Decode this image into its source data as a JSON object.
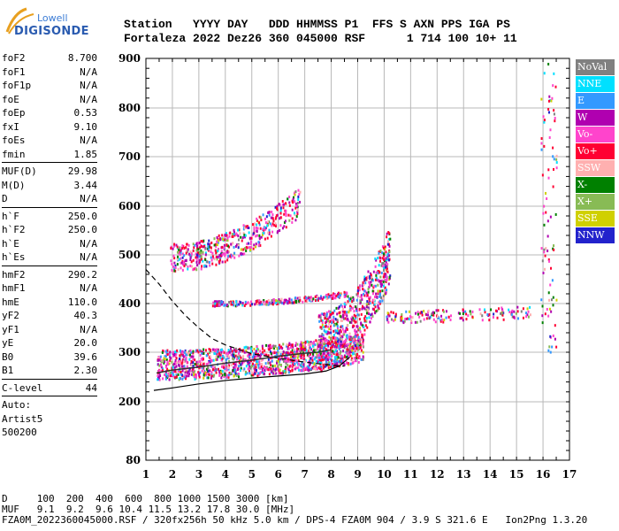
{
  "logo": {
    "line1": "Lowell",
    "line2": "DIGISONDE"
  },
  "header": {
    "line1": "Station   YYYY DAY   DDD HHMMSS P1  FFS S AXN PPS IGA PS",
    "line2": "Fortaleza 2022 Dez26 360 045000 RSF      1 714 100 10+ 11"
  },
  "params": [
    {
      "k": "foF2",
      "v": "8.700"
    },
    {
      "k": "foF1",
      "v": "N/A"
    },
    {
      "k": "foF1p",
      "v": "N/A"
    },
    {
      "k": "foE",
      "v": "N/A"
    },
    {
      "k": "foEp",
      "v": "0.53"
    },
    {
      "k": "fxI",
      "v": "9.10"
    },
    {
      "k": "foEs",
      "v": "N/A"
    },
    {
      "k": "fmin",
      "v": "1.85"
    },
    {
      "sep": true
    },
    {
      "k": "MUF(D)",
      "v": "29.98"
    },
    {
      "k": "M(D)",
      "v": "3.44"
    },
    {
      "k": "D",
      "v": "N/A"
    },
    {
      "sep": true
    },
    {
      "k": "h`F",
      "v": "250.0"
    },
    {
      "k": "h`F2",
      "v": "250.0"
    },
    {
      "k": "h`E",
      "v": "N/A"
    },
    {
      "k": "h`Es",
      "v": "N/A"
    },
    {
      "sep": true
    },
    {
      "k": "hmF2",
      "v": "290.2"
    },
    {
      "k": "hmF1",
      "v": "N/A"
    },
    {
      "k": "hmE",
      "v": "110.0"
    },
    {
      "k": "yF2",
      "v": "40.3"
    },
    {
      "k": "yF1",
      "v": "N/A"
    },
    {
      "k": "yE",
      "v": "20.0"
    },
    {
      "k": "B0",
      "v": "39.6"
    },
    {
      "k": "B1",
      "v": "2.30"
    },
    {
      "sep": true
    },
    {
      "k": "C-level",
      "v": "44"
    },
    {
      "sep": true
    },
    {
      "t": "Auto:"
    },
    {
      "t": "Artist5"
    },
    {
      "t": "500200"
    }
  ],
  "legend": [
    {
      "label": "NoVal",
      "bg": "#808080",
      "fg": "#ffffff"
    },
    {
      "label": "NNE",
      "bg": "#00e0ff",
      "fg": "#ffffff"
    },
    {
      "label": "E",
      "bg": "#3399ff",
      "fg": "#ffffff"
    },
    {
      "label": "W",
      "bg": "#b000b0",
      "fg": "#ffffff"
    },
    {
      "label": "Vo-",
      "bg": "#ff44cc",
      "fg": "#ffffff"
    },
    {
      "label": "Vo+",
      "bg": "#ff0033",
      "fg": "#ffffff"
    },
    {
      "label": "SSW",
      "bg": "#ffb0b0",
      "fg": "#ffffff"
    },
    {
      "label": "X-",
      "bg": "#008000",
      "fg": "#ffffff"
    },
    {
      "label": "X+",
      "bg": "#88bb55",
      "fg": "#ffffff"
    },
    {
      "label": "SSE",
      "bg": "#d0d000",
      "fg": "#ffffff"
    },
    {
      "label": "NNW",
      "bg": "#2222cc",
      "fg": "#ffffff"
    }
  ],
  "footer": {
    "line1": "D     100  200  400  600  800 1000 1500 3000 [km]",
    "line2": "MUF   9.1  9.2  9.6 10.4 11.5 13.2 17.8 30.0 [MHz]",
    "line3": "FZA0M_2022360045000.RSF / 320fx256h 50 kHz 5.0 km / DPS-4 FZA0M 904 / 3.9 S 321.6 E   Ion2Png 1.3.20"
  },
  "chart_data": {
    "type": "scatter",
    "xlim": [
      1,
      17
    ],
    "ylim": [
      80,
      900
    ],
    "xticks": [
      1,
      2,
      3,
      4,
      5,
      6,
      7,
      8,
      9,
      10,
      11,
      12,
      13,
      14,
      15,
      16,
      17
    ],
    "yticks": [
      80,
      200,
      300,
      400,
      500,
      600,
      700,
      800,
      900
    ],
    "grid": true,
    "clusters": [
      {
        "name": "F trace",
        "x_range": [
          1.4,
          9.2
        ],
        "y_base": [
          265,
          300
        ],
        "y_spread": 60,
        "n": 1400
      },
      {
        "name": "spread F",
        "x_range": [
          7.5,
          10.2
        ],
        "y_base": [
          300,
          480
        ],
        "y_spread": 120,
        "n": 700
      },
      {
        "name": "second hop",
        "x_range": [
          1.9,
          6.8
        ],
        "y_base": [
          485,
          600
        ],
        "y_spread": 60,
        "n": 500
      },
      {
        "name": "band 400",
        "x_range": [
          3.5,
          8.6
        ],
        "y_base": [
          400,
          420
        ],
        "y_spread": 10,
        "n": 250
      },
      {
        "name": "far echoes",
        "x_range": [
          10,
          15.5
        ],
        "y_base": [
          370,
          380
        ],
        "y_spread": 25,
        "n": 160
      }
    ],
    "profile_solid": [
      [
        1.3,
        223
      ],
      [
        2,
        228
      ],
      [
        3,
        236
      ],
      [
        4,
        243
      ],
      [
        5,
        248
      ],
      [
        6,
        252
      ],
      [
        7,
        256
      ],
      [
        7.8,
        262
      ],
      [
        8.3,
        272
      ],
      [
        8.7,
        290
      ]
    ],
    "profile_dashed": [
      [
        1,
        470
      ],
      [
        1.5,
        440
      ],
      [
        2,
        405
      ],
      [
        2.5,
        375
      ],
      [
        3,
        350
      ],
      [
        3.5,
        328
      ],
      [
        4,
        315
      ],
      [
        5,
        297
      ],
      [
        6,
        288
      ],
      [
        7,
        280
      ],
      [
        8,
        274
      ],
      [
        8.5,
        272
      ]
    ],
    "trace_dark": [
      [
        1.4,
        258
      ],
      [
        2,
        264
      ],
      [
        3,
        270
      ],
      [
        4,
        278
      ],
      [
        5,
        284
      ],
      [
        6,
        292
      ],
      [
        7,
        298
      ],
      [
        7.5,
        300
      ],
      [
        8,
        305
      ]
    ]
  }
}
